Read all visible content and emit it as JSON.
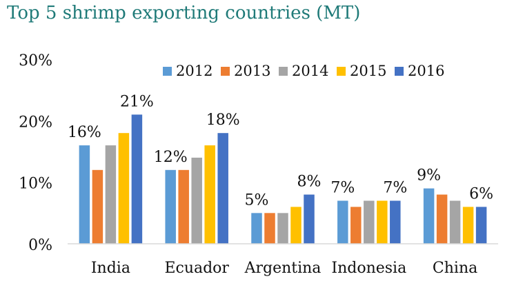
{
  "chart_data": {
    "type": "bar",
    "title": "Top 5 shrimp exporting countries (MT)",
    "xlabel": "",
    "ylabel": "",
    "ylim": [
      0,
      30
    ],
    "yticks": [
      "0%",
      "10%",
      "20%",
      "30%"
    ],
    "ytick_values": [
      0,
      10,
      20,
      30
    ],
    "categories": [
      "India",
      "Ecuador",
      "Argentina",
      "Indonesia",
      "China"
    ],
    "legend_position": "top-right",
    "grid": false,
    "series": [
      {
        "name": "2012",
        "color": "#5b9bd5",
        "values": [
          16,
          12,
          5,
          7,
          9
        ]
      },
      {
        "name": "2013",
        "color": "#ed7d31",
        "values": [
          12,
          12,
          5,
          6,
          8
        ]
      },
      {
        "name": "2014",
        "color": "#a5a5a5",
        "values": [
          16,
          14,
          5,
          7,
          7
        ]
      },
      {
        "name": "2015",
        "color": "#ffc000",
        "values": [
          18,
          16,
          6,
          7,
          6
        ]
      },
      {
        "name": "2016",
        "color": "#4472c4",
        "values": [
          21,
          18,
          8,
          7,
          6
        ]
      }
    ],
    "data_labels": [
      {
        "category_index": 0,
        "series_index": 0,
        "text": "16%"
      },
      {
        "category_index": 0,
        "series_index": 4,
        "text": "21%"
      },
      {
        "category_index": 1,
        "series_index": 0,
        "text": "12%"
      },
      {
        "category_index": 1,
        "series_index": 4,
        "text": "18%"
      },
      {
        "category_index": 2,
        "series_index": 0,
        "text": "5%"
      },
      {
        "category_index": 2,
        "series_index": 4,
        "text": "8%"
      },
      {
        "category_index": 3,
        "series_index": 0,
        "text": "7%"
      },
      {
        "category_index": 3,
        "series_index": 4,
        "text": "7%"
      },
      {
        "category_index": 4,
        "series_index": 0,
        "text": "9%"
      },
      {
        "category_index": 4,
        "series_index": 4,
        "text": "6%"
      }
    ]
  }
}
